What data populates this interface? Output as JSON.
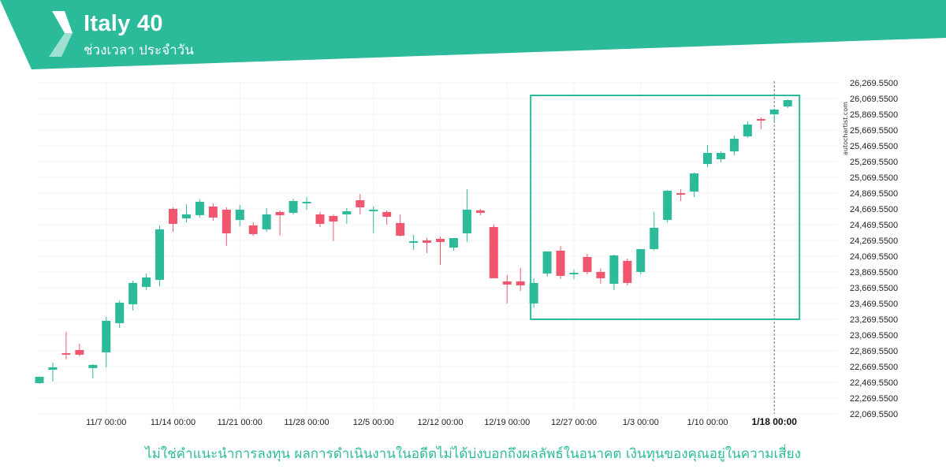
{
  "header": {
    "title": "Italy 40",
    "subtitle": "ช่วงเวลา ประจำวัน",
    "bg_color": "#2bbb9b",
    "logo_icon": "autochartist-logo-icon"
  },
  "footer": {
    "disclaimer": "ไม่ใช่คำแนะนำการลงทุน ผลการดำเนินงานในอดีตไม่ได้บ่งบอกถึงผลลัพธ์ในอนาคต เงินทุนของคุณอยู่ในความเสี่ยง"
  },
  "watermark": "autochartist.com",
  "colors": {
    "up": "#2bbb9b",
    "down": "#f0566e",
    "pattern_box": "#2bbb9b"
  },
  "chart_data": {
    "type": "candlestick",
    "title": "Italy 40",
    "subtitle": "ช่วงเวลา ประจำวัน",
    "ylim": [
      22069.55,
      26269.55
    ],
    "y_ticks": [
      "26,269.5500",
      "26,069.5500",
      "25,869.5500",
      "25,669.5500",
      "25,469.5500",
      "25,269.5500",
      "25,069.5500",
      "24,869.5500",
      "24,669.5500",
      "24,469.5500",
      "24,269.5500",
      "24,069.5500",
      "23,869.5500",
      "23,669.5500",
      "23,469.5500",
      "23,269.5500",
      "23,069.5500",
      "22,869.5500",
      "22,669.5500",
      "22,469.5500",
      "22,269.5500",
      "22,069.5500"
    ],
    "x_ticks": [
      {
        "label": "11/7 00:00",
        "index": 5
      },
      {
        "label": "11/14 00:00",
        "index": 10
      },
      {
        "label": "11/21 00:00",
        "index": 15
      },
      {
        "label": "11/28 00:00",
        "index": 20
      },
      {
        "label": "12/5 00:00",
        "index": 25
      },
      {
        "label": "12/12 00:00",
        "index": 30
      },
      {
        "label": "12/19 00:00",
        "index": 35
      },
      {
        "label": "12/27 00:00",
        "index": 40
      },
      {
        "label": "1/3 00:00",
        "index": 45
      },
      {
        "label": "1/10 00:00",
        "index": 50
      },
      {
        "label": "1/18 00:00",
        "index": 55,
        "highlight": true
      }
    ],
    "candles": [
      {
        "o": 22460,
        "h": 22520,
        "l": 22450,
        "c": 22540
      },
      {
        "o": 22630,
        "h": 22720,
        "l": 22480,
        "c": 22660
      },
      {
        "o": 22840,
        "h": 23110,
        "l": 22760,
        "c": 22820
      },
      {
        "o": 22880,
        "h": 22960,
        "l": 22800,
        "c": 22820
      },
      {
        "o": 22650,
        "h": 22700,
        "l": 22520,
        "c": 22690
      },
      {
        "o": 22850,
        "h": 23300,
        "l": 22660,
        "c": 23250
      },
      {
        "o": 23220,
        "h": 23510,
        "l": 23160,
        "c": 23480
      },
      {
        "o": 23460,
        "h": 23760,
        "l": 23380,
        "c": 23730
      },
      {
        "o": 23680,
        "h": 23850,
        "l": 23640,
        "c": 23800
      },
      {
        "o": 23770,
        "h": 24460,
        "l": 23690,
        "c": 24410
      },
      {
        "o": 24670,
        "h": 24690,
        "l": 24380,
        "c": 24480
      },
      {
        "o": 24550,
        "h": 24730,
        "l": 24500,
        "c": 24600
      },
      {
        "o": 24590,
        "h": 24790,
        "l": 24560,
        "c": 24760
      },
      {
        "o": 24700,
        "h": 24740,
        "l": 24520,
        "c": 24560
      },
      {
        "o": 24660,
        "h": 24690,
        "l": 24200,
        "c": 24360
      },
      {
        "o": 24530,
        "h": 24720,
        "l": 24450,
        "c": 24660
      },
      {
        "o": 24460,
        "h": 24500,
        "l": 24330,
        "c": 24350
      },
      {
        "o": 24410,
        "h": 24680,
        "l": 24380,
        "c": 24600
      },
      {
        "o": 24630,
        "h": 24650,
        "l": 24330,
        "c": 24590
      },
      {
        "o": 24620,
        "h": 24800,
        "l": 24600,
        "c": 24770
      },
      {
        "o": 24760,
        "h": 24820,
        "l": 24660,
        "c": 24760
      },
      {
        "o": 24600,
        "h": 24630,
        "l": 24440,
        "c": 24480
      },
      {
        "o": 24580,
        "h": 24600,
        "l": 24260,
        "c": 24510
      },
      {
        "o": 24600,
        "h": 24680,
        "l": 24480,
        "c": 24640
      },
      {
        "o": 24780,
        "h": 24860,
        "l": 24600,
        "c": 24690
      },
      {
        "o": 24660,
        "h": 24700,
        "l": 24360,
        "c": 24660
      },
      {
        "o": 24630,
        "h": 24650,
        "l": 24470,
        "c": 24570
      },
      {
        "o": 24490,
        "h": 24600,
        "l": 24320,
        "c": 24330
      },
      {
        "o": 24250,
        "h": 24340,
        "l": 24150,
        "c": 24260
      },
      {
        "o": 24270,
        "h": 24300,
        "l": 24110,
        "c": 24240
      },
      {
        "o": 24290,
        "h": 24320,
        "l": 23960,
        "c": 24250
      },
      {
        "o": 24180,
        "h": 24300,
        "l": 24140,
        "c": 24300
      },
      {
        "o": 24360,
        "h": 24920,
        "l": 24250,
        "c": 24660
      },
      {
        "o": 24650,
        "h": 24670,
        "l": 24590,
        "c": 24620
      },
      {
        "o": 24440,
        "h": 24470,
        "l": 23800,
        "c": 23790
      },
      {
        "o": 23750,
        "h": 23830,
        "l": 23470,
        "c": 23710
      },
      {
        "o": 23750,
        "h": 23920,
        "l": 23630,
        "c": 23700
      },
      {
        "o": 23470,
        "h": 23790,
        "l": 23420,
        "c": 23730
      },
      {
        "o": 23850,
        "h": 24130,
        "l": 23810,
        "c": 24130
      },
      {
        "o": 24140,
        "h": 24200,
        "l": 23780,
        "c": 23820
      },
      {
        "o": 23850,
        "h": 23900,
        "l": 23780,
        "c": 23860
      },
      {
        "o": 24060,
        "h": 24100,
        "l": 23840,
        "c": 23870
      },
      {
        "o": 23870,
        "h": 23910,
        "l": 23720,
        "c": 23790
      },
      {
        "o": 23720,
        "h": 24090,
        "l": 23640,
        "c": 24080
      },
      {
        "o": 24010,
        "h": 24040,
        "l": 23700,
        "c": 23730
      },
      {
        "o": 23870,
        "h": 24160,
        "l": 23840,
        "c": 24160
      },
      {
        "o": 24160,
        "h": 24630,
        "l": 24140,
        "c": 24430
      },
      {
        "o": 24530,
        "h": 24910,
        "l": 24500,
        "c": 24900
      },
      {
        "o": 24870,
        "h": 24920,
        "l": 24770,
        "c": 24860
      },
      {
        "o": 24890,
        "h": 25130,
        "l": 24820,
        "c": 25120
      },
      {
        "o": 25240,
        "h": 25480,
        "l": 25200,
        "c": 25380
      },
      {
        "o": 25300,
        "h": 25400,
        "l": 25260,
        "c": 25380
      },
      {
        "o": 25400,
        "h": 25600,
        "l": 25350,
        "c": 25560
      },
      {
        "o": 25590,
        "h": 25780,
        "l": 25570,
        "c": 25740
      },
      {
        "o": 25810,
        "h": 25830,
        "l": 25680,
        "c": 25800
      },
      {
        "o": 25870,
        "h": 25940,
        "l": 25780,
        "c": 25930
      },
      {
        "o": 25970,
        "h": 26060,
        "l": 25950,
        "c": 26050
      }
    ],
    "pattern_box": {
      "from_index": 37,
      "to_index": 57,
      "low": 23269.55,
      "high": 26109.55
    }
  }
}
